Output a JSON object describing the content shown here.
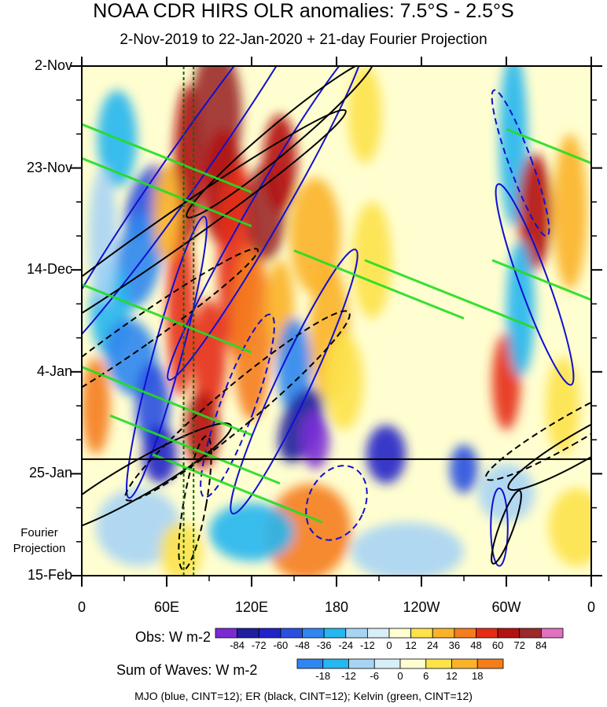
{
  "chart_data": {
    "type": "heatmap",
    "title": "NOAA CDR HIRS OLR anomalies: 7.5°S - 2.5°S",
    "subtitle": "2-Nov-2019 to 22-Jan-2020 + 21-day Fourier Projection",
    "x_ticks": [
      "0",
      "60E",
      "120E",
      "180",
      "120W",
      "60W",
      "0"
    ],
    "x_tick_values": [
      0,
      60,
      120,
      180,
      240,
      300,
      360
    ],
    "xlim": [
      0,
      360
    ],
    "y_ticks": [
      "2-Nov",
      "23-Nov",
      "14-Dec",
      "4-Jan",
      "25-Jan",
      "15-Feb"
    ],
    "y_tick_days": [
      0,
      21,
      42,
      63,
      84,
      105
    ],
    "ylim_days": [
      0,
      105
    ],
    "observation_end_day": 81,
    "projection_label": "Fourier Projection",
    "reference_longitudes": [
      72,
      79
    ],
    "obs_colorbar": {
      "label": "Obs: W m-2",
      "ticks": [
        "-84",
        "-72",
        "-60",
        "-48",
        "-36",
        "-24",
        "-12",
        "0",
        "12",
        "24",
        "36",
        "48",
        "60",
        "72",
        "84"
      ],
      "colors": [
        "#7a2bd6",
        "#1f1fa0",
        "#2222c8",
        "#2a4fe0",
        "#2f86f0",
        "#26b6f0",
        "#a8d4f4",
        "#d8eef8",
        "#fffed0",
        "#fde24a",
        "#fbb22a",
        "#f57d1c",
        "#e62c14",
        "#b31212",
        "#9c2a2a",
        "#e070c0"
      ]
    },
    "waves_colorbar": {
      "label": "Sum of Waves: W m-2",
      "ticks": [
        "-18",
        "-12",
        "-6",
        "0",
        "6",
        "12",
        "18"
      ],
      "colors": [
        "#2f86f0",
        "#26b6f0",
        "#a8d4f4",
        "#d8eef8",
        "#fffed0",
        "#fde24a",
        "#fbb22a",
        "#f57d1c"
      ]
    },
    "legend_text": "MJO (blue, CINT=12); ER (black, CINT=12); Kelvin (green, CINT=12)"
  }
}
